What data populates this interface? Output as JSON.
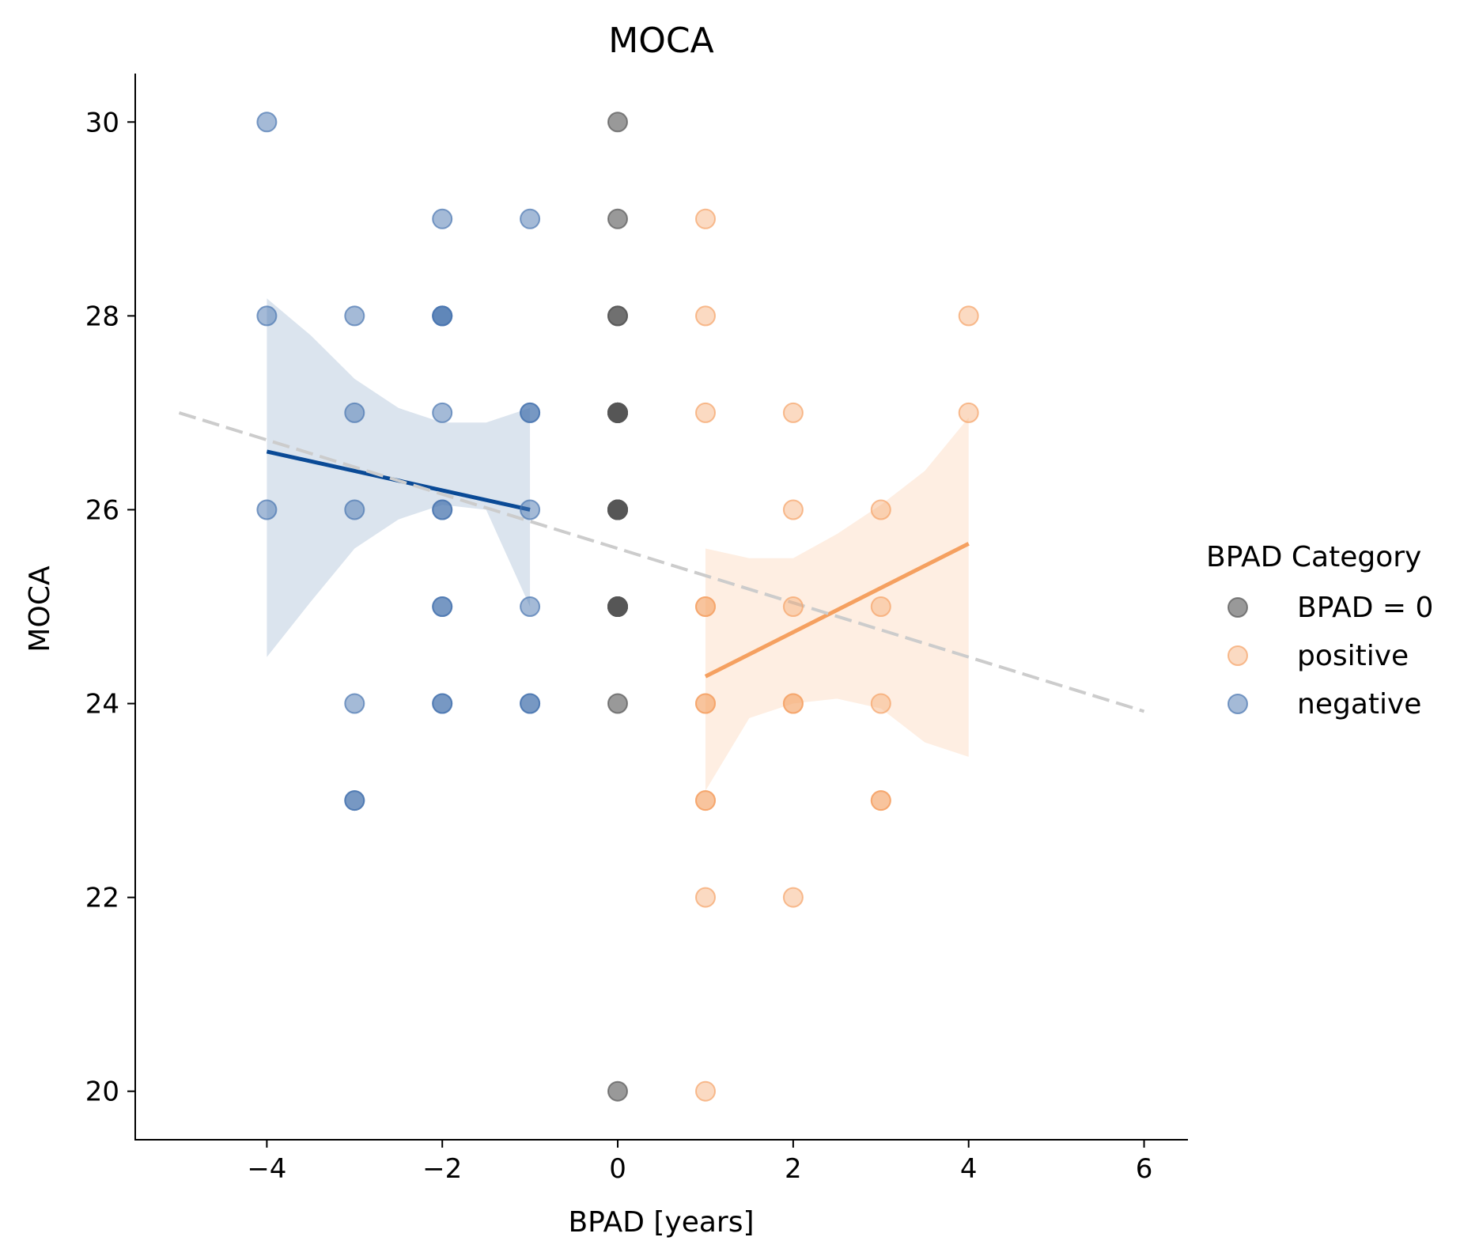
{
  "chart_data": {
    "type": "scatter",
    "title": "MOCA",
    "xlabel": "BPAD [years]",
    "ylabel": "MOCA",
    "xlim": [
      -5.5,
      6.5
    ],
    "ylim": [
      19.5,
      30.5
    ],
    "xticks": [
      -4,
      -2,
      0,
      2,
      4,
      6
    ],
    "yticks": [
      20,
      22,
      24,
      26,
      28,
      30
    ],
    "xtick_labels": [
      "−4",
      "−2",
      "0",
      "2",
      "4",
      "6"
    ],
    "ytick_labels": [
      "20",
      "22",
      "24",
      "26",
      "28",
      "30"
    ],
    "grid": false,
    "legend": {
      "title": "BPAD Category",
      "placement": "right-outside",
      "entries": [
        "BPAD = 0",
        "positive",
        "negative"
      ]
    },
    "series": [
      {
        "name": "BPAD = 0",
        "color": "#555555",
        "points": [
          [
            0,
            30,
            1
          ],
          [
            0,
            29,
            1
          ],
          [
            0,
            28,
            2
          ],
          [
            0,
            27,
            5
          ],
          [
            0,
            26,
            5
          ],
          [
            0,
            25,
            5
          ],
          [
            0,
            24,
            1
          ],
          [
            0,
            20,
            1
          ]
        ]
      },
      {
        "name": "positive",
        "color": "#f5a366",
        "points": [
          [
            1,
            29,
            1
          ],
          [
            1,
            28,
            1
          ],
          [
            1,
            27,
            1
          ],
          [
            1,
            25,
            2
          ],
          [
            1,
            24,
            2
          ],
          [
            1,
            23,
            2
          ],
          [
            1,
            22,
            1
          ],
          [
            1,
            20,
            1
          ],
          [
            2,
            27,
            1
          ],
          [
            2,
            26,
            1
          ],
          [
            2,
            25,
            1
          ],
          [
            2,
            24,
            2
          ],
          [
            2,
            22,
            1
          ],
          [
            3,
            26,
            1
          ],
          [
            3,
            25,
            1
          ],
          [
            3,
            24,
            1
          ],
          [
            3,
            23,
            2
          ],
          [
            4,
            28,
            1
          ],
          [
            4,
            27,
            1
          ]
        ]
      },
      {
        "name": "negative",
        "color": "#4a76b0",
        "points": [
          [
            -4,
            30,
            1
          ],
          [
            -4,
            28,
            1
          ],
          [
            -4,
            26,
            1
          ],
          [
            -3,
            28,
            1
          ],
          [
            -3,
            27,
            1
          ],
          [
            -3,
            26,
            1
          ],
          [
            -3,
            24,
            1
          ],
          [
            -3,
            23,
            2
          ],
          [
            -2,
            29,
            1
          ],
          [
            -2,
            28,
            3
          ],
          [
            -2,
            27,
            1
          ],
          [
            -2,
            26,
            2
          ],
          [
            -2,
            25,
            2
          ],
          [
            -2,
            24,
            2
          ],
          [
            -1,
            29,
            1
          ],
          [
            -1,
            27,
            2
          ],
          [
            -1,
            26,
            1
          ],
          [
            -1,
            25,
            1
          ],
          [
            -1,
            24,
            2
          ]
        ]
      }
    ],
    "fits": [
      {
        "series": "negative",
        "color": "#0a4a96",
        "x": [
          -4,
          -1
        ],
        "y": [
          26.6,
          26.0
        ]
      },
      {
        "series": "positive",
        "color": "#f5a060",
        "x": [
          1,
          4
        ],
        "y": [
          24.28,
          25.65
        ]
      },
      {
        "series": "overall",
        "color": "#cccccc",
        "style": "dashed",
        "x": [
          -5,
          6
        ],
        "y": [
          27.0,
          23.92
        ]
      }
    ],
    "confidence_bands": [
      {
        "series": "negative",
        "color": "#dbe4ee",
        "x": [
          -4,
          -3.5,
          -3,
          -2.5,
          -2,
          -1.5,
          -1
        ],
        "upper": [
          28.18,
          27.8,
          27.35,
          27.05,
          26.9,
          26.9,
          27.05
        ],
        "lower": [
          24.48,
          25.05,
          25.6,
          25.9,
          26.05,
          26.0,
          25.0
        ]
      },
      {
        "series": "positive",
        "color": "#feeee2",
        "x": [
          1,
          1.5,
          2,
          2.5,
          3,
          3.5,
          4
        ],
        "upper": [
          25.6,
          25.5,
          25.5,
          25.75,
          26.05,
          26.4,
          26.95
        ],
        "lower": [
          23.1,
          23.85,
          24.0,
          24.05,
          23.95,
          23.6,
          23.45
        ]
      }
    ]
  }
}
